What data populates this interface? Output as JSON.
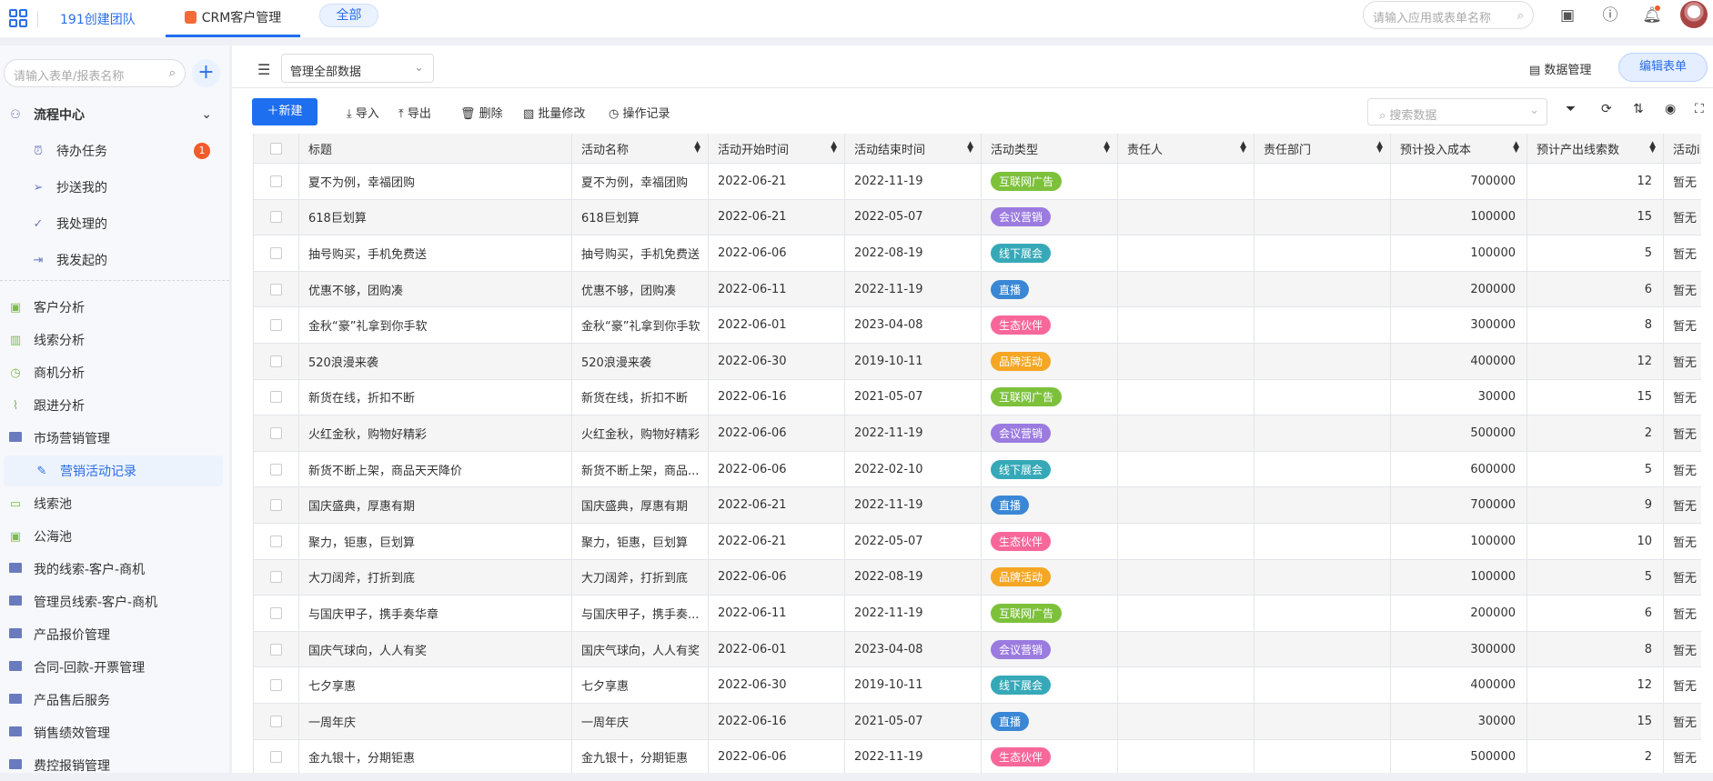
{
  "topbar": {
    "team": "191创建团队",
    "app_tab": "CRM客户管理",
    "all_button": "全部",
    "search_placeholder": "请输入应用或表单名称"
  },
  "sidebar": {
    "search_placeholder": "请输入表单/报表名称",
    "flow_center": "流程中心",
    "flow_items": [
      {
        "label": "待办任务",
        "icon": "alarm-icon",
        "badge": "1"
      },
      {
        "label": "抄送我的",
        "icon": "send-icon"
      },
      {
        "label": "我处理的",
        "icon": "check-circle-icon"
      },
      {
        "label": "我发起的",
        "icon": "export-icon"
      }
    ],
    "items": [
      {
        "label": "客户分析",
        "icon": "contact-icon"
      },
      {
        "label": "线索分析",
        "icon": "bar-chart-icon"
      },
      {
        "label": "商机分析",
        "icon": "clock-icon"
      },
      {
        "label": "跟进分析",
        "icon": "line-chart-icon"
      },
      {
        "label": "市场营销管理",
        "icon": "folder-icon"
      },
      {
        "label": "营销活动记录",
        "icon": "edit-icon",
        "selected": true,
        "sub": true
      },
      {
        "label": "线索池",
        "icon": "presentation-icon"
      },
      {
        "label": "公海池",
        "icon": "contact-icon"
      },
      {
        "label": "我的线索-客户-商机",
        "icon": "folder-icon"
      },
      {
        "label": "管理员线索-客户-商机",
        "icon": "folder-icon"
      },
      {
        "label": "产品报价管理",
        "icon": "folder-icon"
      },
      {
        "label": "合同-回款-开票管理",
        "icon": "folder-icon"
      },
      {
        "label": "产品售后服务",
        "icon": "folder-icon"
      },
      {
        "label": "销售绩效管理",
        "icon": "folder-icon"
      },
      {
        "label": "费控报销管理",
        "icon": "folder-icon"
      }
    ]
  },
  "main": {
    "view_select": "管理全部数据",
    "data_manage": "数据管理",
    "edit_form": "编辑表单",
    "toolbar": {
      "new": "新建",
      "import": "导入",
      "export": "导出",
      "delete": "删除",
      "batch_edit": "批量修改",
      "log": "操作记录",
      "search_placeholder": "搜索数据"
    },
    "columns": [
      "标题",
      "活动名称",
      "活动开始时间",
      "活动结束时间",
      "活动类型",
      "责任人",
      "责任部门",
      "预计投入成本",
      "预计产出线索数",
      "活动i"
    ],
    "tag_colors": {
      "互联网广告": "#7dc13b",
      "会议营销": "#9b7be0",
      "线下展会": "#36a9b8",
      "直播": "#3a87d6",
      "生态伙伴": "#f7679a",
      "品牌活动": "#f5a623"
    },
    "rows": [
      [
        "夏不为例，幸福团购",
        "夏不为例，幸福团购",
        "2022-06-21",
        "2022-11-19",
        "互联网广告",
        "",
        "",
        "700000",
        "12",
        "暂无"
      ],
      [
        "618巨划算",
        "618巨划算",
        "2022-06-21",
        "2022-05-07",
        "会议营销",
        "",
        "",
        "100000",
        "15",
        "暂无"
      ],
      [
        "抽号购买，手机免费送",
        "抽号购买，手机免费送",
        "2022-06-06",
        "2022-08-19",
        "线下展会",
        "",
        "",
        "100000",
        "5",
        "暂无"
      ],
      [
        "优惠不够，团购凑",
        "优惠不够，团购凑",
        "2022-06-11",
        "2022-11-19",
        "直播",
        "",
        "",
        "200000",
        "6",
        "暂无"
      ],
      [
        "金秋“豪”礼拿到你手软",
        "金秋“豪”礼拿到你手软",
        "2022-06-01",
        "2023-04-08",
        "生态伙伴",
        "",
        "",
        "300000",
        "8",
        "暂无"
      ],
      [
        "520浪漫来袭",
        "520浪漫来袭",
        "2022-06-30",
        "2019-10-11",
        "品牌活动",
        "",
        "",
        "400000",
        "12",
        "暂无"
      ],
      [
        "新货在线，折扣不断",
        "新货在线，折扣不断",
        "2022-06-16",
        "2021-05-07",
        "互联网广告",
        "",
        "",
        "30000",
        "15",
        "暂无"
      ],
      [
        "火红金秋，购物好精彩",
        "火红金秋，购物好精彩",
        "2022-06-06",
        "2022-11-19",
        "会议营销",
        "",
        "",
        "500000",
        "2",
        "暂无"
      ],
      [
        "新货不断上架，商品天天降价",
        "新货不断上架，商品...",
        "2022-06-06",
        "2022-02-10",
        "线下展会",
        "",
        "",
        "600000",
        "5",
        "暂无"
      ],
      [
        "国庆盛典，厚惠有期",
        "国庆盛典，厚惠有期",
        "2022-06-21",
        "2022-11-19",
        "直播",
        "",
        "",
        "700000",
        "9",
        "暂无"
      ],
      [
        "聚力，钜惠，巨划算",
        "聚力，钜惠，巨划算",
        "2022-06-21",
        "2022-05-07",
        "生态伙伴",
        "",
        "",
        "100000",
        "10",
        "暂无"
      ],
      [
        "大刀阔斧，打折到底",
        "大刀阔斧，打折到底",
        "2022-06-06",
        "2022-08-19",
        "品牌活动",
        "",
        "",
        "100000",
        "5",
        "暂无"
      ],
      [
        "与国庆甲子，携手奏华章",
        "与国庆甲子，携手奏...",
        "2022-06-11",
        "2022-11-19",
        "互联网广告",
        "",
        "",
        "200000",
        "6",
        "暂无"
      ],
      [
        "国庆气球向，人人有奖",
        "国庆气球向，人人有奖",
        "2022-06-01",
        "2023-04-08",
        "会议营销",
        "",
        "",
        "300000",
        "8",
        "暂无"
      ],
      [
        "七夕享惠",
        "七夕享惠",
        "2022-06-30",
        "2019-10-11",
        "线下展会",
        "",
        "",
        "400000",
        "12",
        "暂无"
      ],
      [
        "一周年庆",
        "一周年庆",
        "2022-06-16",
        "2021-05-07",
        "直播",
        "",
        "",
        "30000",
        "15",
        "暂无"
      ],
      [
        "金九银十，分期钜惠",
        "金九银十，分期钜惠",
        "2022-06-06",
        "2022-11-19",
        "生态伙伴",
        "",
        "",
        "500000",
        "2",
        "暂无"
      ]
    ]
  }
}
